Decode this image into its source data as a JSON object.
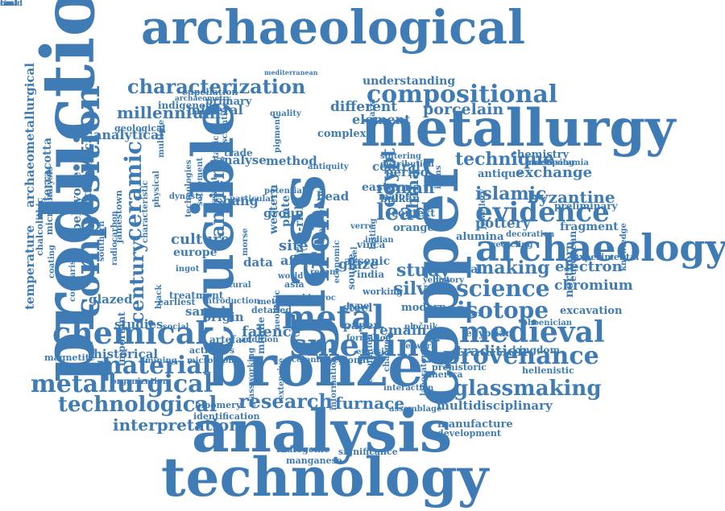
{
  "cloud": {
    "colors": {
      "primary": "#3f7bb5",
      "background": "#ffffff"
    },
    "words": [
      {
        "text": "archaeological",
        "rotated": false
      },
      {
        "text": "metallurgy",
        "rotated": false
      },
      {
        "text": "production",
        "rotated": true
      },
      {
        "text": "crucible",
        "rotated": true
      },
      {
        "text": "glass",
        "rotated": true
      },
      {
        "text": "copper",
        "rotated": true
      },
      {
        "text": "bronze",
        "rotated": false
      },
      {
        "text": "analysis",
        "rotated": false
      },
      {
        "text": "technology",
        "rotated": false
      },
      {
        "text": "archaeology",
        "rotated": false
      },
      {
        "text": "composition",
        "rotated": true
      },
      {
        "text": "iron",
        "rotated": true
      },
      {
        "text": "metal",
        "rotated": false
      },
      {
        "text": "smelting",
        "rotated": false
      },
      {
        "text": "medieval",
        "rotated": false
      },
      {
        "text": "chemical",
        "rotated": false
      },
      {
        "text": "compositional",
        "rotated": false
      },
      {
        "text": "characterization",
        "rotated": false
      },
      {
        "text": "ceramic",
        "rotated": true
      },
      {
        "text": "ancient",
        "rotated": true
      },
      {
        "text": "evidence",
        "rotated": false
      },
      {
        "text": "provenance",
        "rotated": false
      },
      {
        "text": "metallurgical",
        "rotated": false
      },
      {
        "text": "material",
        "rotated": false
      },
      {
        "text": "technological",
        "rotated": false
      },
      {
        "text": "isotope",
        "rotated": false
      },
      {
        "text": "science",
        "rotated": false
      },
      {
        "text": "glassmaking",
        "rotated": false
      },
      {
        "text": "lead",
        "rotated": false
      },
      {
        "text": "research",
        "rotated": false
      },
      {
        "text": "furnace",
        "rotated": false
      },
      {
        "text": "interpretation",
        "rotated": false
      },
      {
        "text": "technique",
        "rotated": false
      },
      {
        "text": "islamic",
        "rotated": false
      },
      {
        "text": "making",
        "rotated": false
      },
      {
        "text": "century",
        "rotated": true
      },
      {
        "text": "culture",
        "rotated": false
      },
      {
        "text": "roman",
        "rotated": false
      },
      {
        "text": "study",
        "rotated": false
      },
      {
        "text": "silver",
        "rotated": false
      },
      {
        "text": "tradition",
        "rotated": false
      },
      {
        "text": "multidisciplinary",
        "rotated": false
      },
      {
        "text": "archaeometallurgical",
        "rotated": true
      },
      {
        "text": "millennium",
        "rotated": false
      },
      {
        "text": "analytical",
        "rotated": false
      },
      {
        "text": "egypt",
        "rotated": true
      },
      {
        "text": "china",
        "rotated": true
      },
      {
        "text": "glaze",
        "rotated": false
      },
      {
        "text": "site",
        "rotated": false
      },
      {
        "text": "faience",
        "rotated": false
      },
      {
        "text": "remain",
        "rotated": false
      },
      {
        "text": "different",
        "rotated": false
      },
      {
        "text": "porcelain",
        "rotated": false
      },
      {
        "text": "element",
        "rotated": false
      },
      {
        "text": "central",
        "rotated": false
      },
      {
        "text": "period",
        "rotated": false
      },
      {
        "text": "exchange",
        "rotated": false
      },
      {
        "text": "byzantine",
        "rotated": false
      },
      {
        "text": "fragment",
        "rotated": false
      },
      {
        "text": "pottery",
        "rotated": false
      },
      {
        "text": "electron",
        "rotated": false
      },
      {
        "text": "chromium",
        "rotated": false
      },
      {
        "text": "excavation",
        "rotated": false
      },
      {
        "text": "understanding",
        "rotated": false
      },
      {
        "text": "mineral",
        "rotated": false
      },
      {
        "text": "primary",
        "rotated": false
      },
      {
        "text": "indigenous",
        "rotated": false
      },
      {
        "text": "cupellation",
        "rotated": false
      },
      {
        "text": "geological",
        "rotated": false
      },
      {
        "text": "terracotta",
        "rotated": true
      },
      {
        "text": "technical",
        "rotated": true
      },
      {
        "text": "workshop",
        "rotated": true
      },
      {
        "text": "beloyode",
        "rotated": true
      },
      {
        "text": "temperature",
        "rotated": true
      },
      {
        "text": "analyse",
        "rotated": false
      },
      {
        "text": "method",
        "rotated": false
      },
      {
        "text": "shang",
        "rotated": false
      },
      {
        "text": "bead",
        "rotated": false
      },
      {
        "text": "group",
        "rotated": false
      },
      {
        "text": "data",
        "rotated": false
      },
      {
        "text": "africa",
        "rotated": false
      },
      {
        "text": "studies",
        "rotated": false
      },
      {
        "text": "origin",
        "rotated": false
      },
      {
        "text": "sample",
        "rotated": false
      },
      {
        "text": "historical",
        "rotated": false
      },
      {
        "text": "glazed",
        "rotated": false
      },
      {
        "text": "europe",
        "rotated": false
      },
      {
        "text": "steel",
        "rotated": false
      },
      {
        "text": "paper",
        "rotated": false
      },
      {
        "text": "modern",
        "rotated": false
      },
      {
        "text": "egyptian",
        "rotated": false
      },
      {
        "text": "northern",
        "rotated": true
      },
      {
        "text": "european",
        "rotated": true
      },
      {
        "text": "kingdom",
        "rotated": false
      },
      {
        "text": "hellenistic",
        "rotated": false
      },
      {
        "text": "manufacture",
        "rotated": false
      },
      {
        "text": "development",
        "rotated": false
      },
      {
        "text": "magnetite",
        "rotated": false
      },
      {
        "text": "organization",
        "rotated": false
      },
      {
        "text": "identification",
        "rotated": false
      },
      {
        "text": "bloomery",
        "rotated": false
      },
      {
        "text": "radiogenic",
        "rotated": false
      },
      {
        "text": "mediterranean",
        "rotated": false
      },
      {
        "text": "archaeometry",
        "rotated": false
      },
      {
        "text": "antique",
        "rotated": false
      },
      {
        "text": "chemistry",
        "rotated": false
      },
      {
        "text": "mesopotamia",
        "rotated": false
      },
      {
        "text": "preliminary",
        "rotated": false
      },
      {
        "text": "experimental",
        "rotated": false
      },
      {
        "text": "knowledge",
        "rotated": true
      },
      {
        "text": "microanalysis",
        "rotated": true
      },
      {
        "text": "chalcolithic",
        "rotated": true
      },
      {
        "text": "southern",
        "rotated": true
      },
      {
        "text": "earliest",
        "rotated": false
      },
      {
        "text": "important",
        "rotated": true
      },
      {
        "text": "artefact",
        "rotated": false
      },
      {
        "text": "middle",
        "rotated": true
      },
      {
        "text": "neolithic",
        "rotated": true
      },
      {
        "text": "colonial",
        "rotated": false
      },
      {
        "text": "regional",
        "rotated": false
      },
      {
        "text": "eurasia",
        "rotated": false
      },
      {
        "text": "network",
        "rotated": false
      },
      {
        "text": "prehistoric",
        "rotated": false
      },
      {
        "text": "assemblage",
        "rotated": false
      },
      {
        "text": "laboratory",
        "rotated": true
      },
      {
        "text": "complex",
        "rotated": false
      },
      {
        "text": "balkan",
        "rotated": false
      },
      {
        "text": "context",
        "rotated": false
      },
      {
        "text": "orange",
        "rotated": false
      },
      {
        "text": "vinča",
        "rotated": false
      },
      {
        "text": "india",
        "rotated": false
      },
      {
        "text": "serbia",
        "rotated": false
      },
      {
        "text": "asia",
        "rotated": false
      },
      {
        "text": "yellow",
        "rotated": false
      },
      {
        "text": "history",
        "rotated": false
      },
      {
        "text": "several",
        "rotated": false
      },
      {
        "text": "metalwork",
        "rotated": false
      },
      {
        "text": "phoenician",
        "rotated": false
      },
      {
        "text": "working",
        "rotated": false
      },
      {
        "text": "pločnik",
        "rotated": false
      },
      {
        "text": "america",
        "rotated": false
      },
      {
        "text": "formation",
        "rotated": false
      },
      {
        "text": "mining",
        "rotated": false
      },
      {
        "text": "microprobe",
        "rotated": false
      },
      {
        "text": "activities",
        "rotated": false
      },
      {
        "text": "addition",
        "rotated": false
      },
      {
        "text": "arsenic",
        "rotated": false
      },
      {
        "text": "iron-rich",
        "rotated": true
      },
      {
        "text": "plate",
        "rotated": true
      },
      {
        "text": "morse",
        "rotated": true
      },
      {
        "text": "world",
        "rotated": false
      },
      {
        "text": "type",
        "rotated": false
      },
      {
        "text": "source",
        "rotated": true
      },
      {
        "text": "vessel",
        "rotated": true
      },
      {
        "text": "lasting",
        "rotated": true
      },
      {
        "text": "indian",
        "rotated": false
      },
      {
        "text": "eastern",
        "rotated": false
      },
      {
        "text": "major",
        "rotated": false
      },
      {
        "text": "present",
        "rotated": true
      },
      {
        "text": "western",
        "rotated": true
      },
      {
        "text": "alumina",
        "rotated": false
      },
      {
        "text": "icons",
        "rotated": true
      },
      {
        "text": "jewellery",
        "rotated": true
      },
      {
        "text": "decoration",
        "rotated": false
      },
      {
        "text": "recycling",
        "rotated": false
      },
      {
        "text": "processing",
        "rotated": false
      },
      {
        "text": "sintering",
        "rotated": false
      },
      {
        "text": "distribution",
        "rotated": false
      },
      {
        "text": "introduction",
        "rotated": false
      },
      {
        "text": "interaction",
        "rotated": false
      },
      {
        "text": "changes",
        "rotated": true
      },
      {
        "text": "manganese",
        "rotated": false
      },
      {
        "text": "significance",
        "rotated": false
      },
      {
        "text": "information",
        "rotated": true
      },
      {
        "text": "circulation",
        "rotated": true
      },
      {
        "text": "extensive",
        "rotated": true
      },
      {
        "text": "glassworking",
        "rotated": true
      },
      {
        "text": "economic",
        "rotated": true
      },
      {
        "text": "bulgaria",
        "rotated": true
      },
      {
        "text": "metallic",
        "rotated": true
      },
      {
        "text": "pigment",
        "rotated": true
      },
      {
        "text": "antiquity",
        "rotated": false
      },
      {
        "text": "particular",
        "rotated": false
      },
      {
        "text": "treatment",
        "rotated": false
      },
      {
        "text": "cultural",
        "rotated": false
      },
      {
        "text": "black",
        "rotated": true
      },
      {
        "text": "social",
        "rotated": false
      },
      {
        "text": "detailed",
        "rotated": false
      },
      {
        "text": "meteoritic",
        "rotated": false
      },
      {
        "text": "proto",
        "rotated": false
      },
      {
        "text": "recent",
        "rotated": false
      },
      {
        "text": "verre",
        "rotated": false
      },
      {
        "text": "proc",
        "rotated": false
      },
      {
        "text": "trade",
        "rotated": false
      },
      {
        "text": "quality",
        "rotated": false
      },
      {
        "text": "scientific",
        "rotated": true
      },
      {
        "text": "jamestown",
        "rotated": true
      },
      {
        "text": "settlement",
        "rotated": true
      },
      {
        "text": "radiocarbon",
        "rotated": true
      },
      {
        "text": "dynasty",
        "rotated": false
      },
      {
        "text": "multiple",
        "rotated": true
      },
      {
        "text": "comparison",
        "rotated": true
      },
      {
        "text": "physical",
        "rotated": true
      },
      {
        "text": "coating",
        "rotated": true
      },
      {
        "text": "characteristic",
        "rotated": true
      },
      {
        "text": "interpretation",
        "rotated": true
      },
      {
        "text": "technologies",
        "rotated": true
      },
      {
        "text": "potential",
        "rotated": false
      },
      {
        "text": "ingot",
        "rotated": false
      },
      {
        "text": "mold",
        "rotated": false
      },
      {
        "text": "tin",
        "rotated": false
      },
      {
        "text": "cast",
        "rotated": false
      }
    ]
  }
}
